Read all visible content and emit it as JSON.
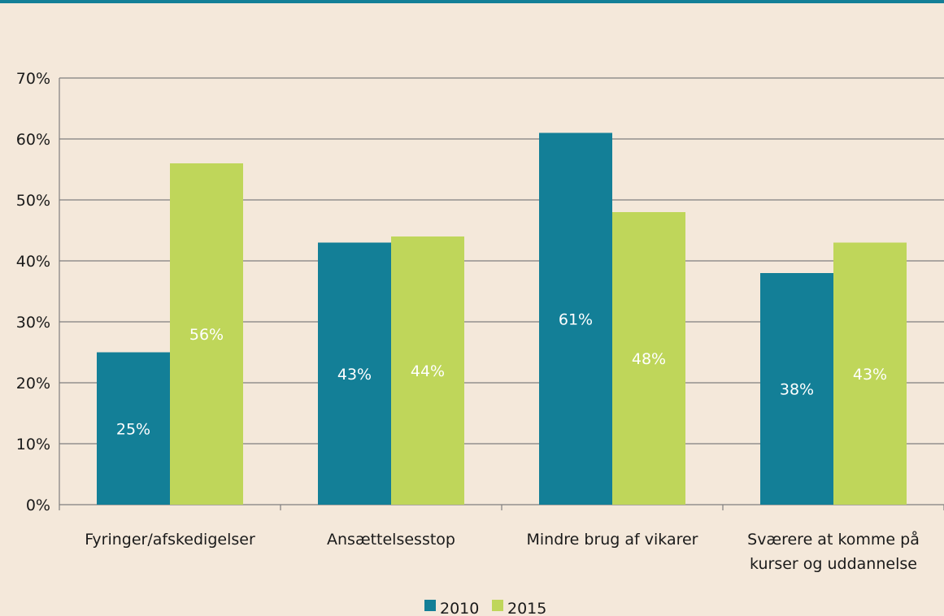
{
  "chart_data": {
    "type": "bar",
    "categories": [
      "Fyringer/afskedigelser",
      "Ansættelsesstop",
      "Mindre brug af vikarer",
      "Sværere at komme på kurser og uddannelse"
    ],
    "category_lines": [
      [
        "Fyringer/afskedigelser"
      ],
      [
        "Ansættelsesstop"
      ],
      [
        "Mindre brug af vikarer"
      ],
      [
        "Sværere at komme på",
        "kurser og uddannelse"
      ]
    ],
    "series": [
      {
        "name": "2010",
        "values": [
          25,
          43,
          61,
          38
        ],
        "labels": [
          "25%",
          "43%",
          "61%",
          "38%"
        ],
        "color": "#137f97"
      },
      {
        "name": "2015",
        "values": [
          56,
          44,
          48,
          43
        ],
        "labels": [
          "56%",
          "44%",
          "48%",
          "43%"
        ],
        "color": "#bfd65a"
      }
    ],
    "y_ticks": [
      "0%",
      "10%",
      "20%",
      "30%",
      "40%",
      "50%",
      "60%",
      "70%"
    ],
    "ylim": [
      0,
      70
    ],
    "grid": true,
    "legend_position": "bottom"
  },
  "colors": {
    "background": "#f4e8da",
    "accent_rule": "#137f97",
    "grid": "#7f7f7f"
  }
}
